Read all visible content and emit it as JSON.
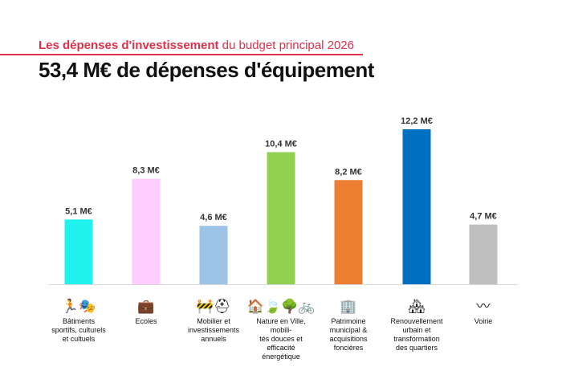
{
  "header": {
    "subtitle_bold": "Les dépenses d'investissement",
    "subtitle_rest": " du budget principal 2026",
    "title": "53,4 M€ de dépenses d'équipement"
  },
  "chart_data": {
    "type": "bar",
    "title": "53,4 M€ de dépenses d'équipement",
    "categories": [
      "Bâtiments sportifs, culturels et cultuels",
      "Ecoles",
      "Mobilier et investissements annuels",
      "Nature en Ville, mobilités douces et efficacité énergétique",
      "Patrimoine municipal & acquisitions foncières",
      "Renouvellement urbain et transformation des quartiers",
      "Voirie"
    ],
    "category_lines": [
      [
        "Bâtiments",
        "sportifs, culturels",
        "et cultuels"
      ],
      [
        "Ecoles"
      ],
      [
        "Mobilier et",
        "investissements",
        "annuels"
      ],
      [
        "Nature en Ville, mobili-",
        "tés douces et efficacité",
        "énergétique"
      ],
      [
        "Patrimoine",
        "municipal &",
        "acquisitions",
        "foncières"
      ],
      [
        "Renouvellement",
        "urbain et",
        "transformation",
        "des quartiers"
      ],
      [
        "Voirie"
      ]
    ],
    "values": [
      5.1,
      8.3,
      4.6,
      10.4,
      8.2,
      12.2,
      4.7
    ],
    "value_labels": [
      "5,1 M€",
      "8,3 M€",
      "4,6 M€",
      "10,4 M€",
      "8,2 M€",
      "12,2 M€",
      "4,7 M€"
    ],
    "colors": [
      "#22f2ee",
      "#ffccff",
      "#9dc3e6",
      "#92d050",
      "#ed7d31",
      "#0070c0",
      "#bfbfbf"
    ],
    "icons": [
      "sports-culture-icon",
      "briefcase-icon",
      "cone-helmet-icon",
      "house-leaf-tree-bike-icon",
      "building-icon",
      "city-buildings-icon",
      "road-icon"
    ],
    "icon_glyphs": [
      "🏃🎭",
      "💼",
      "🚧⛑",
      "🏠🍃🌳🚲",
      "🏢",
      "🏘",
      "〰"
    ],
    "ylim": [
      0,
      12.2
    ],
    "xlabel": "",
    "ylabel": "",
    "grid": false
  }
}
